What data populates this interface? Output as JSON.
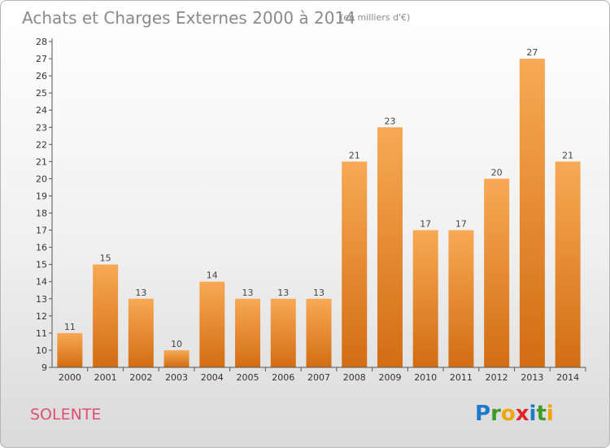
{
  "chart_data": {
    "type": "bar",
    "title": "Achats et Charges Externes 2000 à 2014",
    "subtitle": "(en milliers d'€)",
    "categories": [
      "2000",
      "2001",
      "2002",
      "2003",
      "2004",
      "2005",
      "2006",
      "2007",
      "2008",
      "2009",
      "2010",
      "2011",
      "2012",
      "2013",
      "2014"
    ],
    "values": [
      11,
      15,
      13,
      10,
      14,
      13,
      13,
      13,
      21,
      23,
      17,
      17,
      20,
      27,
      21
    ],
    "ylim": [
      9,
      28
    ],
    "yticks": [
      9,
      10,
      11,
      12,
      13,
      14,
      15,
      16,
      17,
      18,
      19,
      20,
      21,
      22,
      23,
      24,
      25,
      26,
      27,
      28
    ],
    "grid": false,
    "legend": "none",
    "bar_color_light": "#f8a955",
    "bar_color_dark": "#d26d12"
  },
  "footer": {
    "commune": "SOLENTE",
    "brand_letters": [
      "P",
      "r",
      "o",
      "x",
      "i",
      "t",
      "i"
    ],
    "brand_colors": [
      "#1f78c8",
      "#3f9a2a",
      "#f2a400",
      "#e0252a",
      "#1f78c8",
      "#3f9a2a",
      "#f2a400"
    ]
  }
}
